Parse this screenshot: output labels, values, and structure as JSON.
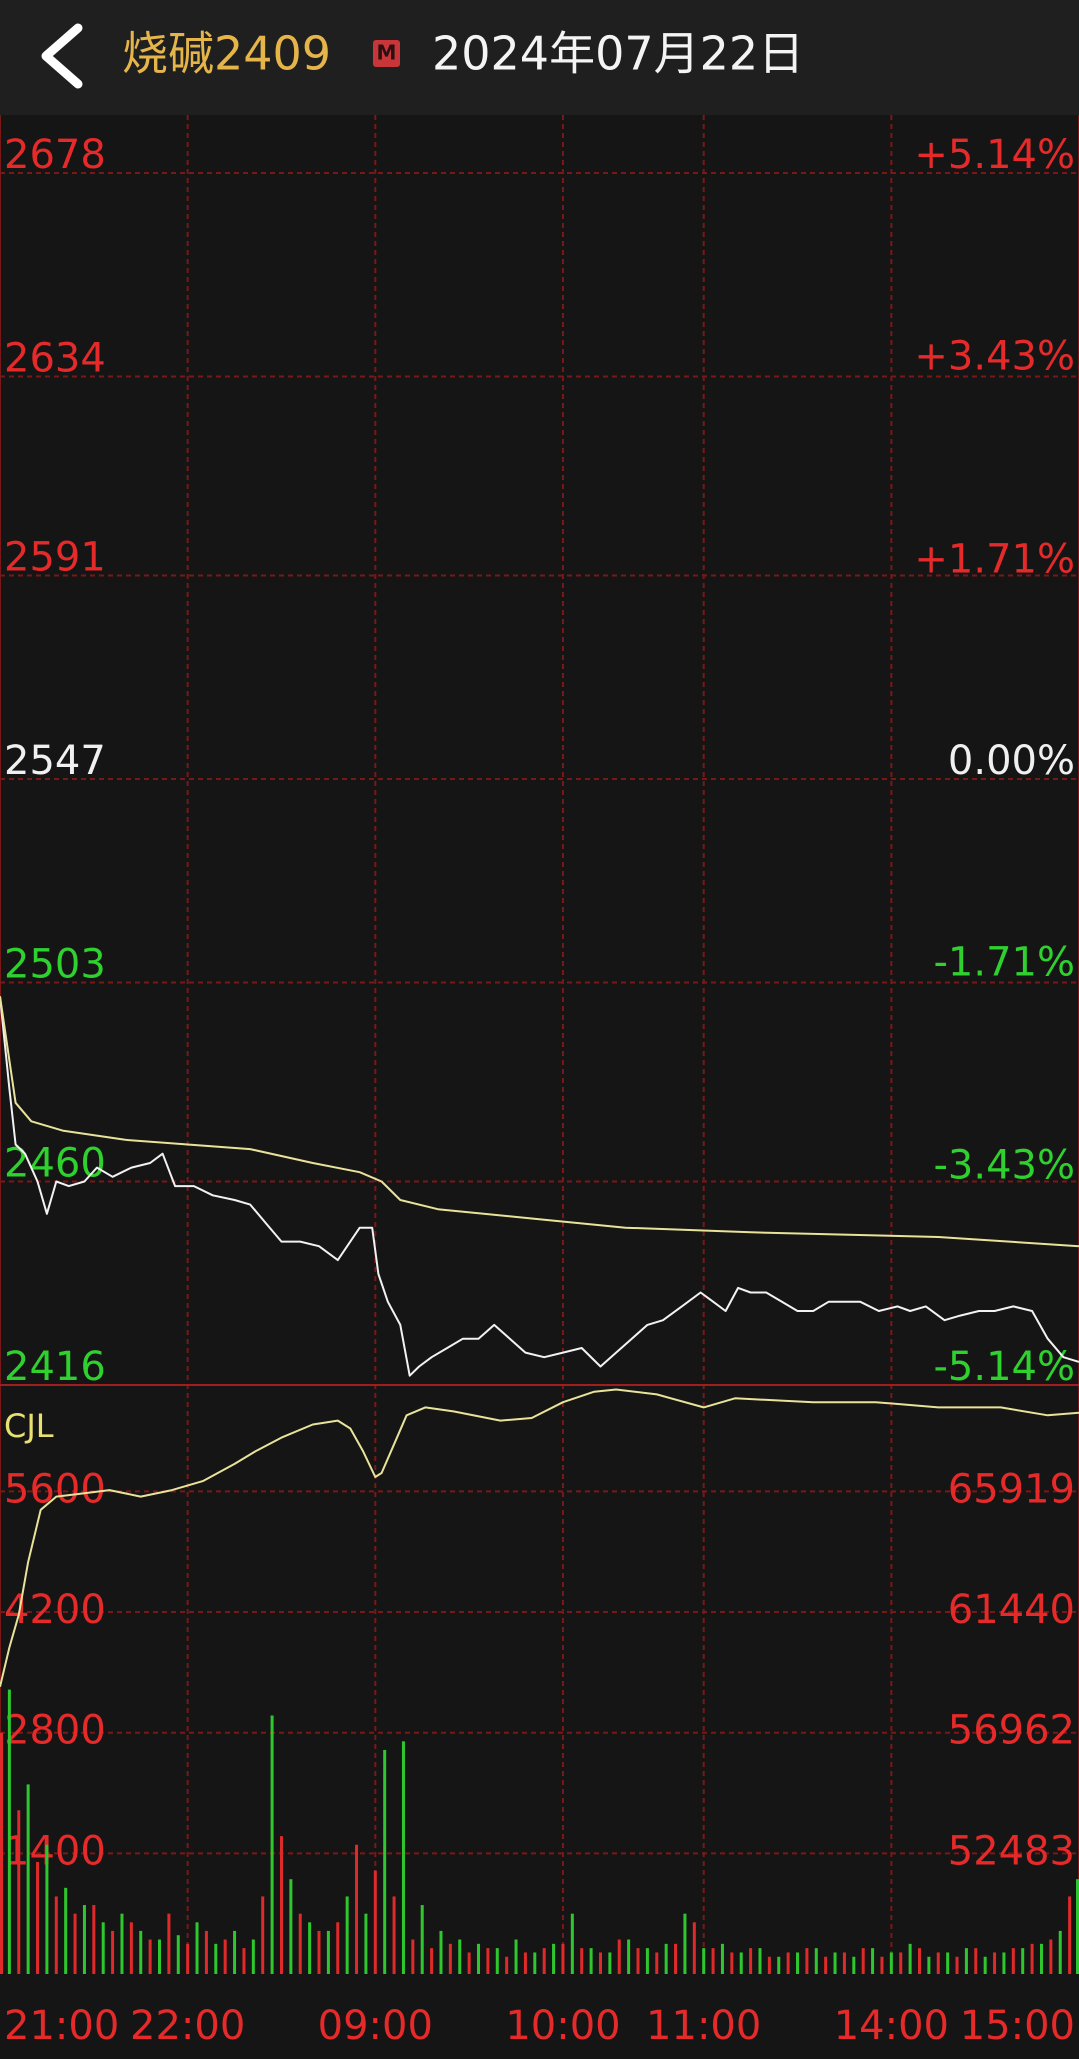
{
  "header": {
    "title": "烧碱2409",
    "badge": "M",
    "date": "2024年07月22日"
  },
  "chart_data": [
    {
      "type": "line",
      "xlim": [
        0,
        345
      ],
      "xticks": [
        {
          "value": 0,
          "label": "21:00"
        },
        {
          "value": 60,
          "label": "22:00"
        },
        {
          "value": 120,
          "label": "09:00"
        },
        {
          "value": 180,
          "label": "10:00"
        },
        {
          "value": 225,
          "label": "11:00"
        },
        {
          "value": 285,
          "label": "14:00"
        },
        {
          "value": 345,
          "label": "15:00"
        }
      ],
      "ylim": [
        2416,
        2678
      ],
      "yticks": [
        2416,
        2460,
        2503,
        2547,
        2591,
        2634,
        2678
      ],
      "y2lim": [
        -5.14,
        5.14
      ],
      "y2ticks": [
        {
          "value": -5.14,
          "label": "-5.14%"
        },
        {
          "value": -3.43,
          "label": "-3.43%"
        },
        {
          "value": -1.71,
          "label": "-1.71%"
        },
        {
          "value": 0,
          "label": "0.00%"
        },
        {
          "value": 1.71,
          "label": "+1.71%"
        },
        {
          "value": 3.43,
          "label": "+3.43%"
        },
        {
          "value": 5.14,
          "label": "+5.14%"
        }
      ],
      "grid": true,
      "series": [
        {
          "color": "#f2f2f2",
          "x": [
            0,
            3,
            5,
            8,
            12,
            15,
            18,
            22,
            27,
            31,
            36,
            42,
            48,
            52,
            56,
            62,
            68,
            75,
            80,
            85,
            90,
            96,
            102,
            108,
            112,
            115,
            119,
            121,
            124,
            128,
            131,
            134,
            138,
            143,
            148,
            153,
            158,
            163,
            168,
            174,
            180,
            186,
            192,
            197,
            202,
            207,
            212,
            218,
            224,
            228,
            232,
            236,
            240,
            245,
            250,
            255,
            260,
            265,
            270,
            275,
            281,
            287,
            291,
            296,
            302,
            307,
            313,
            318,
            324,
            330,
            335,
            340,
            345
          ],
          "values": [
            2500,
            2480,
            2468,
            2466,
            2460,
            2453,
            2460,
            2459,
            2460,
            2463,
            2461,
            2463,
            2464,
            2466,
            2459,
            2459,
            2457,
            2456,
            2455,
            2451,
            2447,
            2447,
            2446,
            2443,
            2447,
            2450,
            2450,
            2440,
            2434,
            2429,
            2418,
            2420,
            2422,
            2424,
            2426,
            2426,
            2429,
            2426,
            2423,
            2422,
            2423,
            2424,
            2420,
            2423,
            2426,
            2429,
            2430,
            2433,
            2436,
            2434,
            2432,
            2437,
            2436,
            2436,
            2434,
            2432,
            2432,
            2434,
            2434,
            2434,
            2432,
            2433,
            2432,
            2433,
            2430,
            2431,
            2432,
            2432,
            2433,
            2432,
            2426,
            2422,
            2421
          ]
        },
        {
          "color": "#e9e39a",
          "x": [
            0,
            5,
            10,
            20,
            40,
            60,
            80,
            100,
            115,
            122,
            128,
            140,
            170,
            200,
            240,
            300,
            345
          ],
          "values": [
            2500,
            2477,
            2473,
            2471,
            2469,
            2468,
            2467,
            2464,
            2462,
            2460,
            2456,
            2454,
            2452,
            2450,
            2449,
            2448,
            2446
          ]
        }
      ]
    },
    {
      "type": "bar",
      "label": "CJL",
      "ylim": [
        0,
        6800
      ],
      "yticks": [
        1400,
        2800,
        4200,
        5600
      ],
      "y2lim": [
        48004,
        69757
      ],
      "y2ticks": [
        52483,
        56962,
        61440,
        65919
      ],
      "grid": true,
      "series": [
        {
          "color": "#e02a2a",
          "x": [
            0,
            6,
            12,
            18,
            24,
            30,
            36,
            42,
            48,
            54,
            60,
            66,
            72,
            78,
            84,
            90,
            96,
            102,
            108,
            114,
            120,
            126,
            132,
            138,
            144,
            150,
            156,
            162,
            168,
            174,
            180,
            186,
            192,
            198,
            204,
            210,
            216,
            222,
            228,
            234,
            240,
            246,
            252,
            258,
            264,
            270,
            276,
            282,
            288,
            294,
            300,
            306,
            312,
            318,
            324,
            330,
            336,
            342
          ],
          "values": [
            2800,
            1900,
            1300,
            900,
            700,
            800,
            500,
            600,
            400,
            700,
            350,
            500,
            400,
            300,
            900,
            1600,
            700,
            500,
            600,
            1500,
            1200,
            900,
            400,
            300,
            350,
            250,
            300,
            200,
            250,
            300,
            350,
            300,
            250,
            400,
            300,
            250,
            350,
            600,
            300,
            250,
            300,
            200,
            250,
            300,
            200,
            250,
            300,
            200,
            250,
            300,
            250,
            200,
            300,
            250,
            300,
            350,
            400,
            900
          ]
        },
        {
          "color": "#2ec82e",
          "x": [
            3,
            9,
            15,
            21,
            27,
            33,
            39,
            45,
            51,
            57,
            63,
            69,
            75,
            81,
            87,
            93,
            99,
            105,
            111,
            117,
            123,
            129,
            135,
            141,
            147,
            153,
            159,
            165,
            171,
            177,
            183,
            189,
            195,
            201,
            207,
            213,
            219,
            225,
            231,
            237,
            243,
            249,
            255,
            261,
            267,
            273,
            279,
            285,
            291,
            297,
            303,
            309,
            315,
            321,
            327,
            333,
            339,
            345
          ],
          "values": [
            3300,
            2200,
            1500,
            1000,
            800,
            600,
            700,
            500,
            400,
            450,
            600,
            350,
            500,
            400,
            3000,
            1100,
            600,
            500,
            900,
            700,
            2600,
            2700,
            800,
            500,
            400,
            350,
            300,
            400,
            250,
            350,
            700,
            300,
            250,
            400,
            300,
            350,
            700,
            300,
            350,
            250,
            300,
            200,
            250,
            300,
            250,
            200,
            300,
            250,
            350,
            200,
            250,
            300,
            200,
            250,
            300,
            350,
            500,
            1100
          ]
        },
        {
          "type": "line",
          "axis": "y2",
          "color": "#e9e39a",
          "x": [
            0,
            3,
            6,
            9,
            13,
            18,
            25,
            35,
            45,
            55,
            65,
            75,
            82,
            90,
            100,
            108,
            112,
            116,
            120,
            122,
            126,
            130,
            136,
            145,
            160,
            170,
            180,
            190,
            197,
            210,
            225,
            235,
            260,
            280,
            300,
            320,
            335,
            345
          ],
          "values": [
            58665,
            60126,
            61343,
            63290,
            65237,
            65724,
            65822,
            65968,
            65724,
            65968,
            66308,
            66941,
            67428,
            67915,
            68401,
            68547,
            68255,
            67428,
            66454,
            66600,
            67671,
            68742,
            69035,
            68889,
            68547,
            68645,
            69229,
            69618,
            69700,
            69520,
            69035,
            69375,
            69229,
            69229,
            69035,
            69035,
            68742,
            68840
          ]
        }
      ]
    }
  ]
}
